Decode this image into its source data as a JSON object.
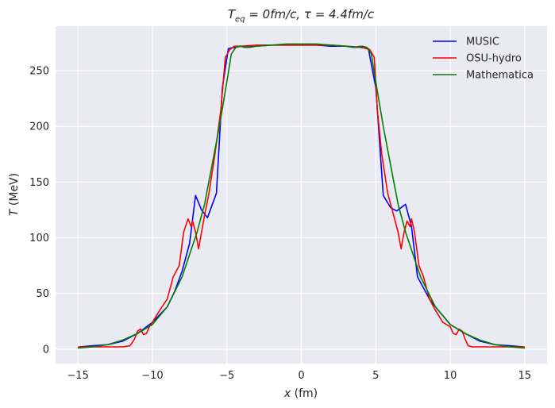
{
  "chart_data": {
    "type": "line",
    "title": "T_eq = 0fm/c, τ = 4.4fm/c",
    "xlabel": "x (fm)",
    "ylabel": "T (MeV)",
    "xlim": [
      -16.5,
      16.5
    ],
    "ylim": [
      -13,
      290
    ],
    "xticks": [
      -15,
      -10,
      -5,
      0,
      5,
      10,
      15
    ],
    "xtick_labels": [
      "−15",
      "−10",
      "−5",
      "0",
      "5",
      "10",
      "15"
    ],
    "yticks": [
      0,
      50,
      100,
      150,
      200,
      250
    ],
    "ytick_labels": [
      "0",
      "50",
      "100",
      "150",
      "200",
      "250"
    ],
    "grid": true,
    "legend_position": "top-right",
    "series": [
      {
        "name": "MUSIC",
        "color": "#0000ff",
        "x": [
          -14.9,
          -14,
          -13,
          -12,
          -11,
          -10,
          -9,
          -8.5,
          -8,
          -7.5,
          -7.1,
          -6.7,
          -6.3,
          -5.7,
          -5.3,
          -4.9,
          -4.5,
          -4,
          -3,
          -2,
          -1,
          0,
          1,
          2,
          3,
          4,
          4.5,
          5,
          5.5,
          6,
          6.4,
          6.8,
          7.0,
          7.4,
          7.8,
          8.2,
          8.6,
          9,
          9.5,
          10,
          10.5,
          11,
          12,
          13,
          14,
          14.9
        ],
        "y": [
          2,
          3,
          4,
          7,
          14,
          24,
          38,
          52,
          70,
          95,
          138,
          125,
          118,
          140,
          235,
          270,
          271,
          272,
          272,
          273,
          273,
          273,
          273,
          272,
          272,
          271,
          270,
          235,
          138,
          127,
          124,
          128,
          130,
          110,
          65,
          55,
          45,
          38,
          30,
          22,
          18,
          14,
          7,
          4,
          3,
          2
        ]
      },
      {
        "name": "OSU-hydro",
        "color": "#ff0000",
        "x": [
          -15,
          -14,
          -13,
          -12,
          -11.5,
          -11.2,
          -11,
          -10.8,
          -10.6,
          -10.4,
          -10.2,
          -10,
          -9.5,
          -9,
          -8.6,
          -8.2,
          -7.9,
          -7.6,
          -7.4,
          -7.3,
          -7.1,
          -6.9,
          -6.7,
          -6.5,
          -6.2,
          -5.8,
          -5.4,
          -5.1,
          -4.8,
          -4.5,
          -4,
          -3,
          -2,
          -1,
          0,
          1,
          2,
          3,
          3.5,
          4,
          4.3,
          4.6,
          4.9,
          5.1,
          5.4,
          5.8,
          6.2,
          6.5,
          6.7,
          6.9,
          7.1,
          7.3,
          7.4,
          7.6,
          7.9,
          8.2,
          8.6,
          9,
          9.5,
          10,
          10.2,
          10.4,
          10.6,
          10.8,
          11,
          11.2,
          11.5,
          12,
          13,
          14,
          15
        ],
        "y": [
          2,
          2,
          2,
          2,
          3,
          9,
          16,
          18,
          13,
          14,
          20,
          24,
          35,
          45,
          65,
          75,
          105,
          117,
          110,
          115,
          105,
          90,
          105,
          120,
          140,
          175,
          215,
          262,
          269,
          272,
          272,
          273,
          273,
          273,
          273,
          273,
          273,
          272,
          271,
          272,
          270,
          269,
          262,
          215,
          175,
          140,
          120,
          105,
          90,
          105,
          115,
          110,
          117,
          105,
          75,
          65,
          45,
          35,
          24,
          20,
          14,
          13,
          18,
          16,
          9,
          3,
          2,
          2,
          2,
          2,
          2
        ]
      },
      {
        "name": "Mathematica",
        "color": "#008000",
        "x": [
          -15,
          -14,
          -13,
          -12,
          -11,
          -10,
          -9,
          -8,
          -7.5,
          -7,
          -6.5,
          -6,
          -5.5,
          -5,
          -4.7,
          -4.4,
          -4.1,
          -3.8,
          -3.5,
          -3,
          -2,
          -1,
          0,
          1,
          2,
          3,
          3.5,
          3.8,
          4.1,
          4.4,
          4.7,
          5,
          5.5,
          6,
          6.5,
          7,
          7.5,
          8,
          9,
          10,
          11,
          12,
          13,
          14,
          15
        ],
        "y": [
          1,
          2,
          4,
          8,
          14,
          22,
          38,
          65,
          85,
          105,
          130,
          165,
          200,
          240,
          265,
          271,
          272,
          271,
          271,
          272,
          273,
          274,
          274,
          274,
          273,
          272,
          271,
          271,
          272,
          271,
          265,
          240,
          200,
          165,
          130,
          105,
          85,
          65,
          38,
          22,
          14,
          8,
          4,
          2,
          1
        ]
      }
    ]
  }
}
